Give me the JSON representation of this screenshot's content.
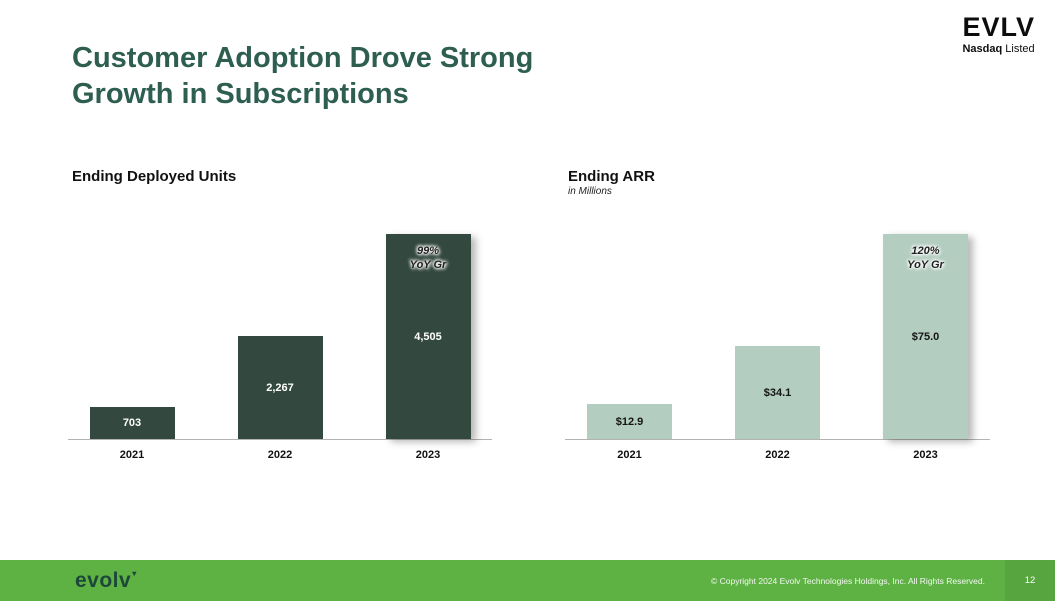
{
  "title": {
    "line1": "Customer Adoption Drove Strong",
    "line2": "Growth in Subscriptions"
  },
  "corner_logo": {
    "ticker": "EVLV",
    "exchange_bold": "Nasdaq",
    "exchange_rest": " Listed"
  },
  "colors": {
    "title_green": "#2d5e50",
    "dark_bar": "#33493f",
    "light_bar": "#b3cdc1",
    "footer_green": "#5eb244"
  },
  "chart_data": [
    {
      "type": "bar",
      "title": "Ending Deployed Units",
      "subtitle": "",
      "categories": [
        "2021",
        "2022",
        "2023"
      ],
      "values": [
        703,
        2267,
        4505
      ],
      "value_labels": [
        "703",
        "2,267",
        "4,505"
      ],
      "annotation_lines": [
        "99%",
        "YoY Gr"
      ],
      "bar_color": "#33493f",
      "label_color": "#ffffff",
      "ylim": [
        0,
        4505
      ],
      "legend": "none",
      "grid": false
    },
    {
      "type": "bar",
      "title": "Ending ARR",
      "subtitle": "in Millions",
      "categories": [
        "2021",
        "2022",
        "2023"
      ],
      "values": [
        12.9,
        34.1,
        75.0
      ],
      "value_labels": [
        "$12.9",
        "$34.1",
        "$75.0"
      ],
      "annotation_lines": [
        "120%",
        "YoY Gr"
      ],
      "bar_color": "#b3cdc1",
      "label_color": "#151515",
      "ylim": [
        0,
        75
      ],
      "legend": "none",
      "grid": false
    }
  ],
  "footer": {
    "brand": "evolv",
    "brand_mark": "▾",
    "copyright": "© Copyright 2024 Evolv Technologies Holdings, Inc. All Rights Reserved.",
    "page_number": "12"
  }
}
